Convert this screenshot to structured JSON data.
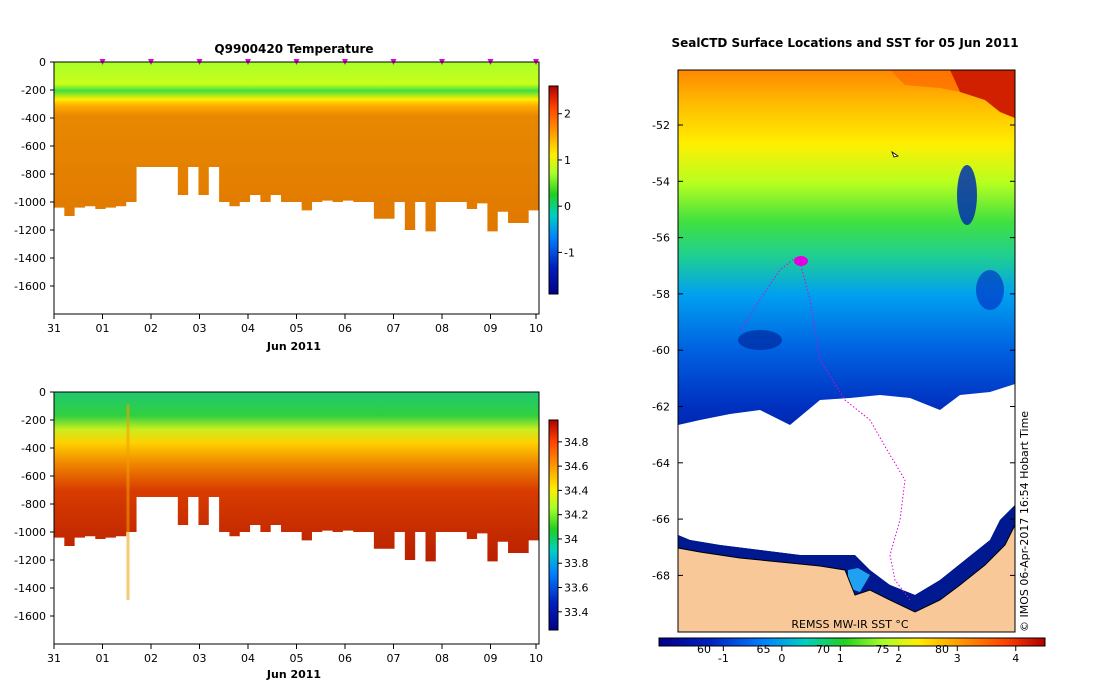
{
  "chart_data": [
    {
      "type": "heatmap",
      "title": "Q9900420  Temperature",
      "xlabel": "Jun 2011",
      "x_ticks": [
        "31",
        "01",
        "02",
        "03",
        "04",
        "05",
        "06",
        "07",
        "08",
        "09",
        "10"
      ],
      "y_ticks": [
        "0",
        "-200",
        "-400",
        "-600",
        "-800",
        "-1000",
        "-1200",
        "-1400",
        "-1600"
      ],
      "ylim": [
        -1800,
        0
      ],
      "colorbar_ticks": [
        "2",
        "1",
        "0",
        "-1"
      ],
      "colorbar_range": [
        -1.9,
        2.6
      ],
      "bottom_depths": [
        -1040,
        -1100,
        -1040,
        -1030,
        -1050,
        -1040,
        -1030,
        -1000,
        -750,
        -750,
        -750,
        -750,
        -950,
        -750,
        -950,
        -750,
        -1000,
        -1030,
        -1000,
        -950,
        -1000,
        -950,
        -1000,
        -1000,
        -1060,
        -1000,
        -990,
        -1000,
        -990,
        -1000,
        -1000,
        -1120,
        -1120,
        -1000,
        -1200,
        -1000,
        -1210,
        -1000,
        -1000,
        -1000,
        -1050,
        -1010,
        -1210,
        -1070,
        -1150,
        -1150,
        -1060
      ],
      "profile_marks": [
        "01",
        "02",
        "03",
        "04",
        "05",
        "06",
        "07",
        "08",
        "09",
        "10"
      ],
      "colors": {
        "surface": "#a8ff2a",
        "thermocline": "#ffcc00",
        "deep": "#e07800"
      }
    },
    {
      "type": "heatmap",
      "title": "",
      "xlabel": "Jun 2011",
      "x_ticks": [
        "31",
        "01",
        "02",
        "03",
        "04",
        "05",
        "06",
        "07",
        "08",
        "09",
        "10"
      ],
      "y_ticks": [
        "0",
        "-200",
        "-400",
        "-600",
        "-800",
        "-1000",
        "-1200",
        "-1400",
        "-1600"
      ],
      "ylim": [
        -1800,
        0
      ],
      "colorbar_ticks": [
        "34.8",
        "34.6",
        "34.4",
        "34.2",
        "34",
        "33.8",
        "33.6",
        "33.4"
      ],
      "colorbar_range": [
        33.25,
        34.98
      ],
      "bottom_depths": [
        -1040,
        -1100,
        -1040,
        -1030,
        -1050,
        -1040,
        -1030,
        -1000,
        -750,
        -750,
        -750,
        -750,
        -950,
        -750,
        -950,
        -750,
        -1000,
        -1030,
        -1000,
        -950,
        -1000,
        -950,
        -1000,
        -1000,
        -1060,
        -1000,
        -990,
        -1000,
        -990,
        -1000,
        -1000,
        -1120,
        -1120,
        -1000,
        -1200,
        -1000,
        -1210,
        -1000,
        -1000,
        -1000,
        -1050,
        -1010,
        -1210,
        -1070,
        -1150,
        -1150,
        -1060
      ],
      "colors": {
        "surface": "#20c860",
        "mid": "#ffd000",
        "deep": "#c02800"
      }
    },
    {
      "type": "heatmap",
      "title": "SealCTD Surface Locations and SST for 05 Jun 2011",
      "y_ticks": [
        "-52",
        "-54",
        "-56",
        "-58",
        "-60",
        "-62",
        "-64",
        "-66",
        "-68"
      ],
      "colorbar_ticks": [
        "-1",
        "0",
        "1",
        "2",
        "3",
        "4"
      ],
      "colorbar_top_ticks": [
        "60",
        "65",
        "70",
        "75",
        "80"
      ],
      "annotation": "REMSS MW-IR SST °C",
      "credit": "© IMOS 06-Apr-2017 16:54 Hobart Time",
      "colors": {
        "land": "#f8c898",
        "track": "#e000e0"
      }
    }
  ]
}
